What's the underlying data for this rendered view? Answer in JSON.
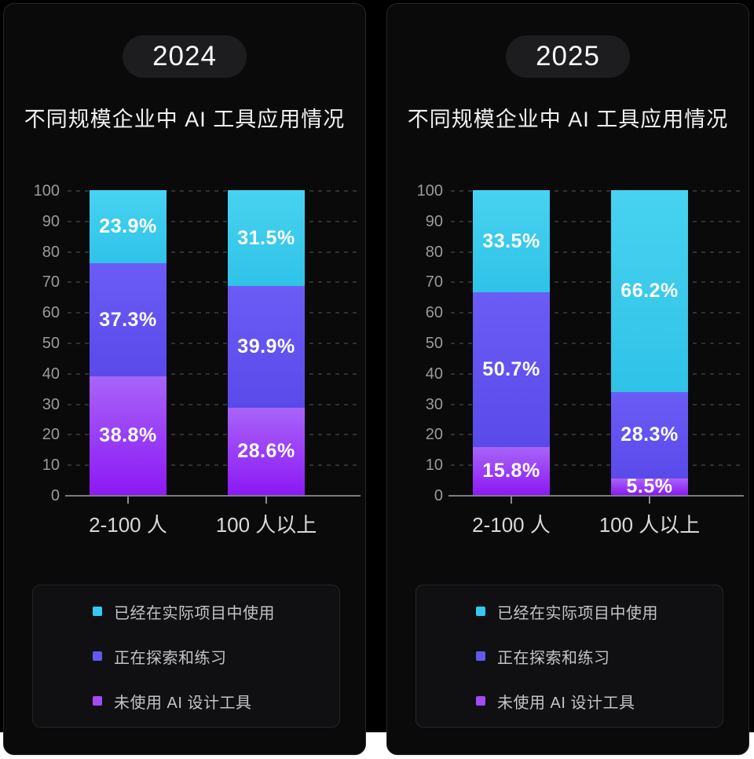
{
  "colors": {
    "card_background": "#0a0a0b",
    "backdrop": "#000000",
    "used_top": "#48d2f0",
    "used_bottom": "#2fc3e8",
    "exploring_top": "#6b5cf6",
    "exploring_bottom": "#5a4aea",
    "not_used_top": "#a864f8",
    "not_used_bottom": "#8c19f4",
    "legend_swatches": [
      "#35c8f0",
      "#6458f2",
      "#a34af5"
    ],
    "grid_color": "#313134",
    "axis_color": "#7d7d7d"
  },
  "chart_data": [
    {
      "type": "bar",
      "stacked": true,
      "year_badge": "2024",
      "title": "不同规模企业中 AI 工具应用情况",
      "categories": [
        "2-100 人",
        "100 人以上"
      ],
      "series": [
        {
          "name": "已经在实际项目中使用",
          "key": "used",
          "values": [
            23.9,
            31.5
          ]
        },
        {
          "name": "正在探索和练习",
          "key": "exploring",
          "values": [
            37.3,
            39.9
          ]
        },
        {
          "name": "未使用 AI 设计工具",
          "key": "not_used",
          "values": [
            38.8,
            28.6
          ]
        }
      ],
      "ylim": [
        0,
        100
      ],
      "yticks": [
        0,
        10,
        20,
        30,
        40,
        50,
        60,
        70,
        80,
        90,
        100
      ],
      "grid": "dashed-horizontal",
      "legend_position": "bottom"
    },
    {
      "type": "bar",
      "stacked": true,
      "year_badge": "2025",
      "title": "不同规模企业中 AI 工具应用情况",
      "categories": [
        "2-100 人",
        "100 人以上"
      ],
      "series": [
        {
          "name": "已经在实际项目中使用",
          "key": "used",
          "values": [
            33.5,
            66.2
          ]
        },
        {
          "name": "正在探索和练习",
          "key": "exploring",
          "values": [
            50.7,
            28.3
          ]
        },
        {
          "name": "未使用 AI 设计工具",
          "key": "not_used",
          "values": [
            15.8,
            5.5
          ]
        }
      ],
      "ylim": [
        0,
        100
      ],
      "yticks": [
        0,
        10,
        20,
        30,
        40,
        50,
        60,
        70,
        80,
        90,
        100
      ],
      "grid": "dashed-horizontal",
      "legend_position": "bottom"
    }
  ]
}
